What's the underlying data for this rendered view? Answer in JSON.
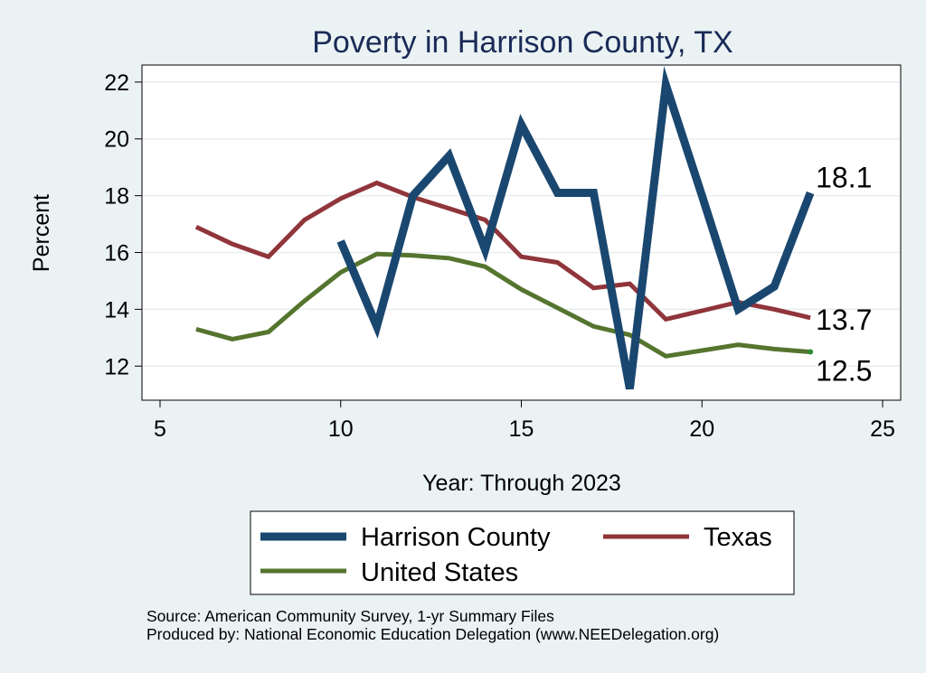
{
  "chart_data": {
    "type": "line",
    "title": "Poverty in Harrison County, TX",
    "xlabel": "Year: Through 2023",
    "ylabel": "Percent",
    "xlim": [
      4.5,
      25.5
    ],
    "ylim": [
      10.8,
      22.6
    ],
    "xticks": [
      5,
      10,
      15,
      20,
      25
    ],
    "yticks": [
      12,
      14,
      16,
      18,
      20,
      22
    ],
    "grid": true,
    "series": [
      {
        "name": "Harrison County",
        "color": "#1a476f",
        "width": 9,
        "x": [
          10,
          11,
          12,
          13,
          14,
          15,
          16,
          17,
          18,
          19,
          20,
          21,
          22,
          23
        ],
        "values": [
          16.4,
          13.4,
          18.0,
          19.4,
          16.1,
          20.5,
          18.1,
          18.1,
          11.2,
          21.9,
          18.0,
          14.0,
          14.8,
          18.1
        ],
        "end_label": "18.1"
      },
      {
        "name": "Texas",
        "color": "#90353b",
        "width": 5,
        "x": [
          6,
          7,
          8,
          9,
          10,
          11,
          12,
          13,
          14,
          15,
          16,
          17,
          18,
          19,
          20,
          21,
          22,
          23
        ],
        "values": [
          16.9,
          16.3,
          15.85,
          17.15,
          17.9,
          18.45,
          17.95,
          17.55,
          17.15,
          15.85,
          15.65,
          14.75,
          14.9,
          13.65,
          13.95,
          14.25,
          14.0,
          13.7
        ],
        "end_label": "13.7"
      },
      {
        "name": "United States",
        "color": "#55752f",
        "width": 5,
        "x": [
          6,
          7,
          8,
          9,
          10,
          11,
          12,
          13,
          14,
          15,
          16,
          17,
          18,
          19,
          20,
          21,
          22,
          23
        ],
        "values": [
          13.3,
          12.95,
          13.2,
          14.3,
          15.3,
          15.95,
          15.9,
          15.8,
          15.5,
          14.7,
          14.05,
          13.4,
          13.1,
          12.35,
          12.55,
          12.75,
          12.6,
          12.5
        ],
        "end_label": "12.5"
      }
    ],
    "legend": [
      "Harrison County",
      "Texas",
      "United States"
    ],
    "legend_position": "bottom"
  },
  "footer": {
    "source": "Source: American Community Survey, 1-yr Summary Files",
    "produced_by": "Produced by: National Economic Education Delegation (www.NEEDelegation.org)"
  },
  "colors": {
    "background": "#eaf2f3",
    "plot_background": "#ffffff",
    "title": "#1a2a57",
    "grid": "#e8eeee"
  }
}
